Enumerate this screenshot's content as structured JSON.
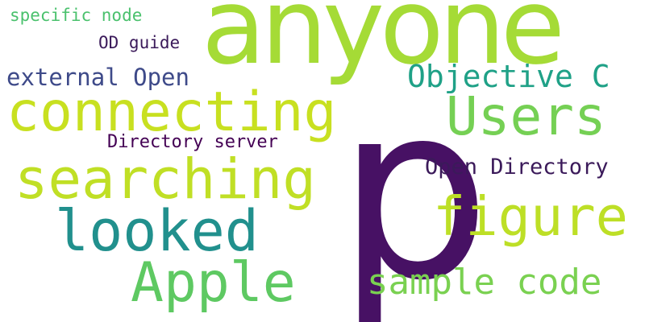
{
  "background": "#ffffff",
  "words": [
    {
      "key": "anyone",
      "text": "anyone",
      "color": "#a5db36"
    },
    {
      "key": "specific",
      "text": "specific node",
      "color": "#4ac16d"
    },
    {
      "key": "odguide",
      "text": "OD guide",
      "color": "#3b1a5a"
    },
    {
      "key": "external",
      "text": "external Open",
      "color": "#3e4a89"
    },
    {
      "key": "objective",
      "text": "Objective C",
      "color": "#1fa187"
    },
    {
      "key": "connecting",
      "text": "connecting",
      "color": "#c8e020"
    },
    {
      "key": "users",
      "text": "Users",
      "color": "#75d054"
    },
    {
      "key": "dirserver",
      "text": "Directory server",
      "color": "#440154"
    },
    {
      "key": "p",
      "text": "p",
      "color": "#471164"
    },
    {
      "key": "opendir",
      "text": "Open Directory",
      "color": "#3b1a5a"
    },
    {
      "key": "searching",
      "text": "searching",
      "color": "#c0df25"
    },
    {
      "key": "figure",
      "text": "figure",
      "color": "#bddf26"
    },
    {
      "key": "looked",
      "text": "looked",
      "color": "#21908d"
    },
    {
      "key": "sample",
      "text": "sample code",
      "color": "#7ad151"
    },
    {
      "key": "apple",
      "text": "Apple",
      "color": "#5ec962"
    }
  ]
}
